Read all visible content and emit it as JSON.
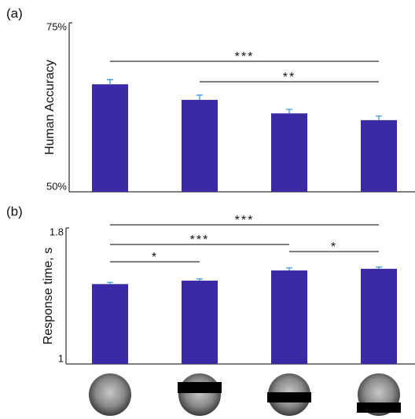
{
  "chart_data": [
    {
      "type": "bar",
      "panel_label": "(a)",
      "y_label": "Human Accuracy",
      "categories": [
        null,
        null,
        null,
        null
      ],
      "values": [
        65.9,
        63.6,
        61.6,
        60.6
      ],
      "errors": [
        0.7,
        0.7,
        0.6,
        0.6
      ],
      "color": "#3a2aa6",
      "error_color": "#2a8fd8",
      "ylim": [
        50,
        75
      ],
      "yticks": [
        {
          "value": 50,
          "label": "50%"
        },
        {
          "value": 75,
          "label": "75%"
        }
      ],
      "annotations": [
        {
          "text": "***",
          "between": [
            0,
            3
          ]
        },
        {
          "text": "**",
          "between": [
            1,
            3
          ]
        }
      ]
    },
    {
      "type": "bar",
      "panel_label": "(b)",
      "y_label": "Response time, s",
      "categories": [
        null,
        null,
        null,
        null
      ],
      "values": [
        1.47,
        1.49,
        1.55,
        1.56
      ],
      "errors": [
        0.01,
        0.01,
        0.015,
        0.01
      ],
      "color": "#3a2aa6",
      "error_color": "#2a8fd8",
      "ylim": [
        1,
        1.8
      ],
      "yticks": [
        1,
        1.8
      ],
      "annotations": [
        {
          "text": "***",
          "between": [
            0,
            3
          ]
        },
        {
          "text": "***",
          "between": [
            0,
            2
          ]
        },
        {
          "text": "*",
          "between": [
            0,
            1
          ]
        },
        {
          "text": "*",
          "between": [
            2,
            3
          ]
        }
      ]
    }
  ]
}
